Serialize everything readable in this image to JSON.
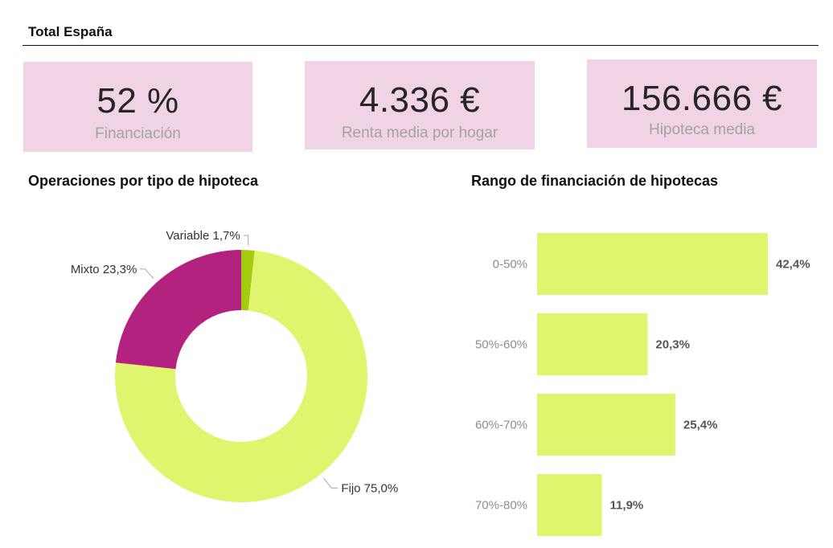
{
  "header": {
    "title": "Total España"
  },
  "kpis": [
    {
      "value": "52 %",
      "label": "Financiación"
    },
    {
      "value": "4.336 €",
      "label": "Renta media por hogar"
    },
    {
      "value": "156.666 €",
      "label": "Hipoteca media"
    }
  ],
  "colors": {
    "kpi_background": "#f1d3e6",
    "fijo": "#e0f56e",
    "mixto": "#b4227f",
    "variable": "#a6cc0e",
    "bar": "#e0f56e"
  },
  "chart_data": [
    {
      "type": "pie",
      "donut": true,
      "title": "Operaciones por tipo de hipoteca",
      "slices": [
        {
          "label": "Variable 1,7%",
          "value": 1.7,
          "color": "#a6cc0e"
        },
        {
          "label": "Fijo 75,0%",
          "value": 75.0,
          "color": "#e0f56e"
        },
        {
          "label": "Mixto 23,3%",
          "value": 23.3,
          "color": "#b4227f"
        }
      ]
    },
    {
      "type": "bar",
      "orientation": "horizontal",
      "title": "Rango de financiación de hipotecas",
      "categories": [
        "0-50%",
        "50%-60%",
        "60%-70%",
        "70%-80%"
      ],
      "values": [
        42.4,
        20.3,
        25.4,
        11.9
      ],
      "value_labels": [
        "42,4%",
        "20,3%",
        "25,4%",
        "11,9%"
      ],
      "xlim": [
        0,
        42.4
      ],
      "grid": false,
      "color": "#e0f56e"
    }
  ]
}
